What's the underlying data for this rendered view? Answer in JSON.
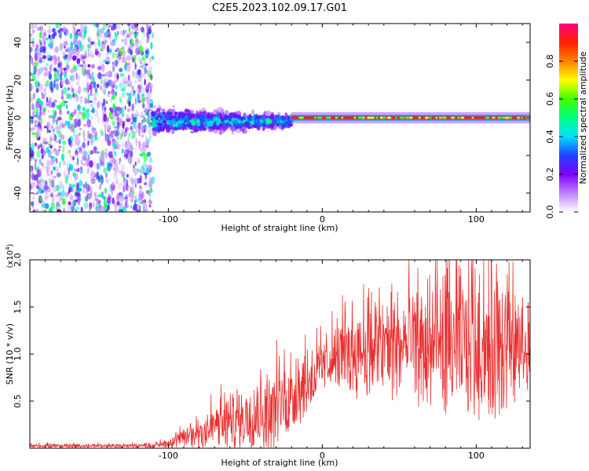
{
  "title": "C2E5.2023.102.09.17.G01",
  "chart_data": [
    {
      "type": "heatmap",
      "name": "spectrogram",
      "xlabel": "Height of straight line (km)",
      "ylabel": "Frequency (Hz)",
      "xlim": [
        -190,
        135
      ],
      "ylim": [
        -50,
        50
      ],
      "xticks": [
        -100,
        0,
        100
      ],
      "xtick_labels": [
        "-100",
        "0",
        "100"
      ],
      "yticks": [
        -40,
        -20,
        0,
        20,
        40
      ],
      "ytick_labels": [
        "-40",
        "-20",
        "0",
        "20",
        "40"
      ],
      "colorbar": {
        "label": "Normalized spectral amplitude",
        "range": [
          0,
          1
        ],
        "ticks": [
          0.0,
          0.2,
          0.4,
          0.6,
          0.8
        ],
        "tick_labels": [
          "0.0",
          "0.2",
          "0.4",
          "0.6",
          "0.8"
        ],
        "colors": [
          "#ffffff",
          "#c080ff",
          "#8000ff",
          "#2040ff",
          "#00e0ff",
          "#00ff80",
          "#40ff00",
          "#ffff00",
          "#ff8000",
          "#ff2000",
          "#ff0080"
        ]
      },
      "regions": [
        {
          "x_from": -190,
          "x_to": -110,
          "description": "broadband noise",
          "freq_spread": 50,
          "amplitude": 0.15
        },
        {
          "x_from": -110,
          "x_to": -20,
          "description": "wide band near 0 Hz",
          "freq_center": -2,
          "freq_spread": 6,
          "amplitude": 0.5
        },
        {
          "x_from": -20,
          "x_to": 135,
          "description": "narrow line at 0 Hz",
          "freq_center": 0,
          "freq_spread": 2,
          "amplitude": 0.9
        }
      ]
    },
    {
      "type": "line",
      "name": "snr",
      "xlabel": "Height of straight line (km)",
      "ylabel": "SNR (10 * v/v)",
      "yscale_label": "(x10",
      "yscale_exp": "4",
      "yscale_close": ")",
      "xlim": [
        -190,
        135
      ],
      "ylim": [
        0,
        2.0
      ],
      "xticks": [
        -100,
        0,
        100
      ],
      "xtick_labels": [
        "-100",
        "0",
        "100"
      ],
      "yticks": [
        0.5,
        1.0,
        1.5,
        2.0
      ],
      "ytick_labels": [
        "0.5",
        "1.0",
        "1.5",
        "2.0"
      ],
      "color": "#e83030",
      "envelope": [
        {
          "x": -190,
          "base": 0.02,
          "amp": 0.03
        },
        {
          "x": -110,
          "base": 0.02,
          "amp": 0.03
        },
        {
          "x": -95,
          "base": 0.05,
          "amp": 0.1
        },
        {
          "x": -70,
          "base": 0.15,
          "amp": 0.35
        },
        {
          "x": -30,
          "base": 0.3,
          "amp": 0.6
        },
        {
          "x": -10,
          "base": 0.6,
          "amp": 0.5
        },
        {
          "x": 5,
          "base": 0.85,
          "amp": 0.4
        },
        {
          "x": 20,
          "base": 0.9,
          "amp": 0.7
        },
        {
          "x": 60,
          "base": 0.9,
          "amp": 0.9
        },
        {
          "x": 115,
          "base": 0.85,
          "amp": 1.15
        },
        {
          "x": 135,
          "base": 0.85,
          "amp": 0.6
        }
      ]
    }
  ]
}
